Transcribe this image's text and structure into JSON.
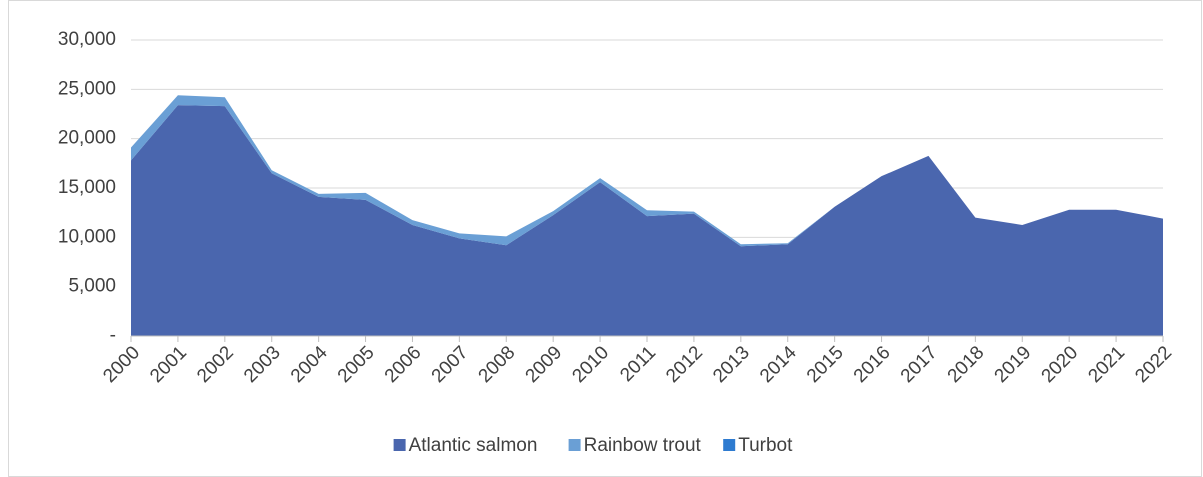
{
  "chart_data": {
    "type": "area",
    "stacked": true,
    "categories": [
      "2000",
      "2001",
      "2002",
      "2003",
      "2004",
      "2005",
      "2006",
      "2007",
      "2008",
      "2009",
      "2010",
      "2011",
      "2012",
      "2013",
      "2014",
      "2015",
      "2016",
      "2017",
      "2018",
      "2019",
      "2020",
      "2021",
      "2022"
    ],
    "series": [
      {
        "name": "Atlantic salmon",
        "color": "#4a66ae",
        "values": [
          17800,
          23400,
          23300,
          16500,
          14100,
          13800,
          11250,
          9900,
          9200,
          12250,
          15600,
          12150,
          12400,
          9100,
          9300,
          13100,
          16200,
          18250,
          12000,
          11250,
          12800,
          12800,
          11900
        ]
      },
      {
        "name": "Rainbow trout",
        "color": "#6a9fd5",
        "values": [
          1300,
          1000,
          900,
          300,
          300,
          700,
          500,
          500,
          900,
          400,
          400,
          600,
          200,
          200,
          100,
          0,
          0,
          0,
          0,
          0,
          0,
          0,
          0
        ]
      },
      {
        "name": "Turbot",
        "color": "#2e7bd0",
        "values": [
          0,
          0,
          0,
          0,
          0,
          0,
          0,
          0,
          0,
          0,
          0,
          0,
          0,
          0,
          0,
          0,
          0,
          0,
          0,
          0,
          0,
          0,
          0
        ]
      }
    ],
    "ylim": [
      0,
      30000
    ],
    "yticks": [
      {
        "value": 0,
        "label": "-"
      },
      {
        "value": 5000,
        "label": "5,000"
      },
      {
        "value": 10000,
        "label": "10,000"
      },
      {
        "value": 15000,
        "label": "15,000"
      },
      {
        "value": 20000,
        "label": "20,000"
      },
      {
        "value": 25000,
        "label": "25,000"
      },
      {
        "value": 30000,
        "label": "30,000"
      }
    ],
    "grid": true,
    "legend": "bottom"
  }
}
